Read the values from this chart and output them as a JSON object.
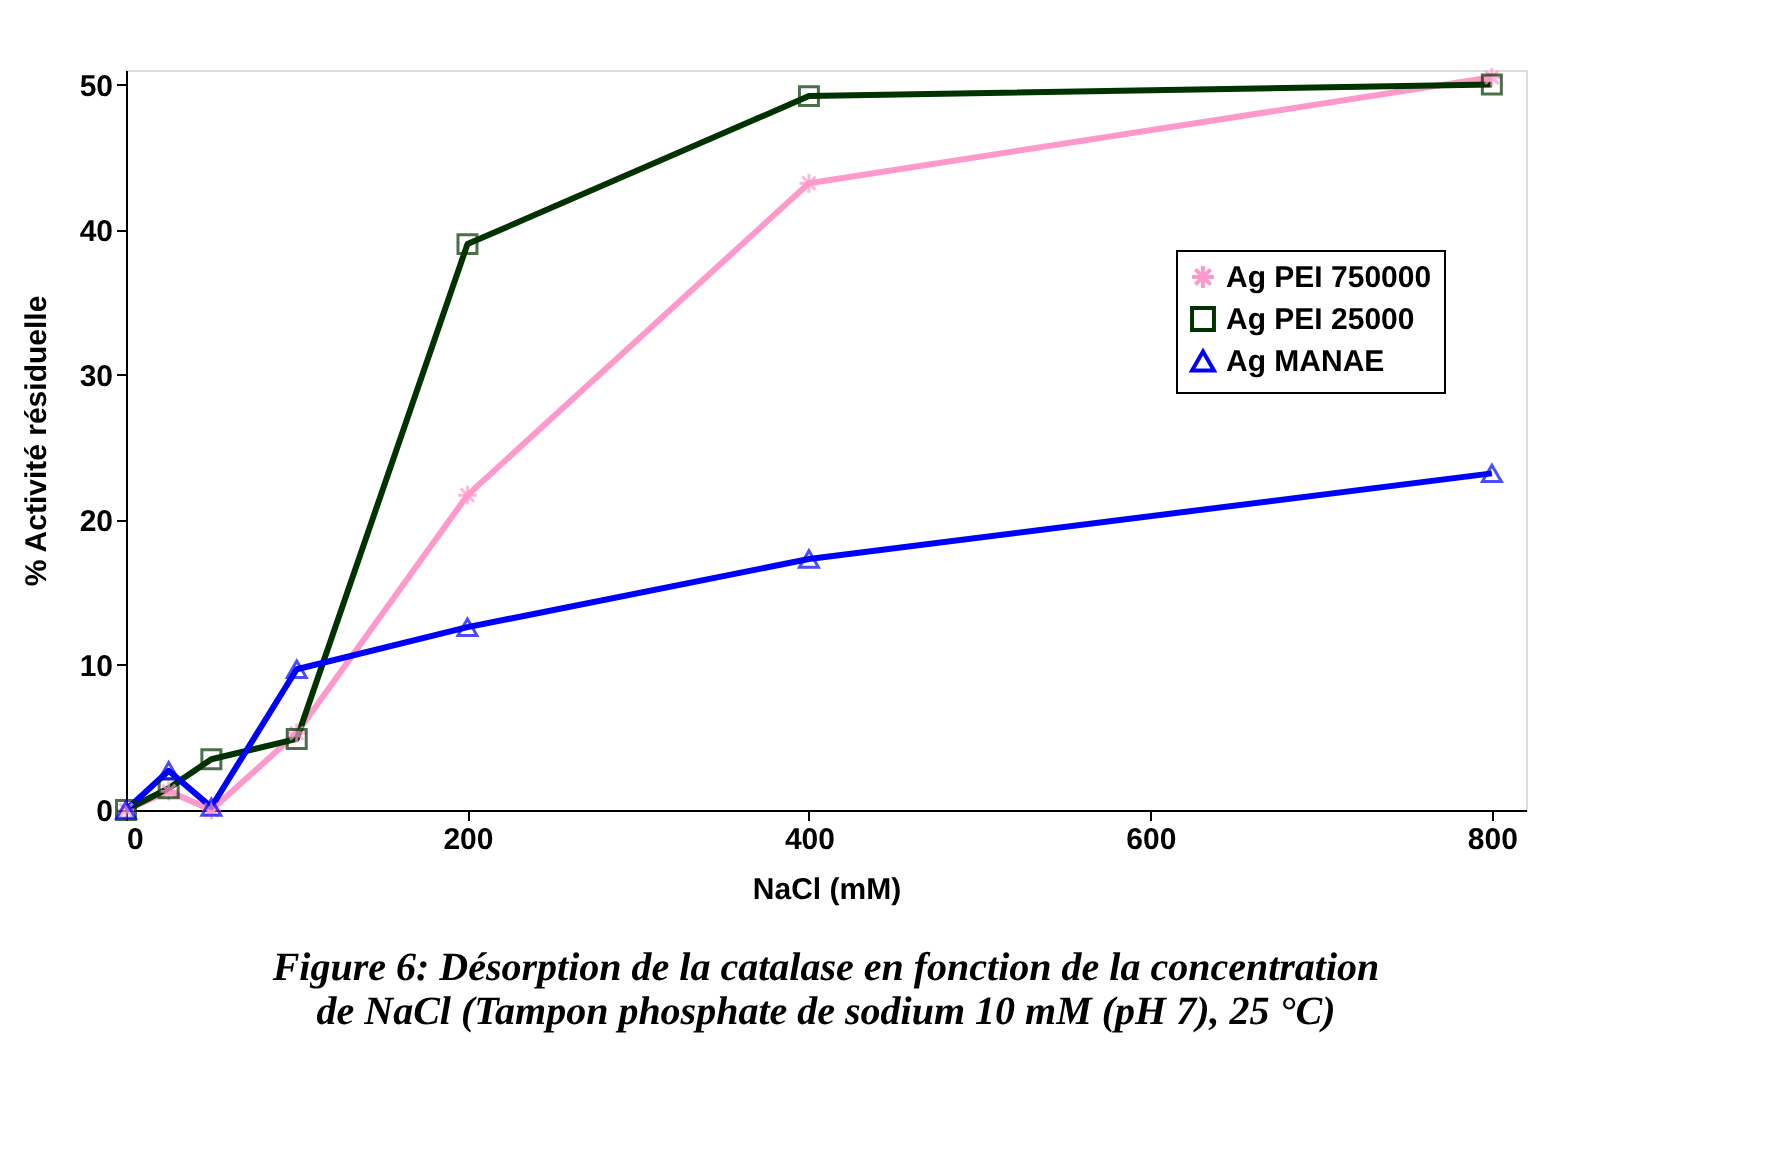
{
  "chart_data": {
    "type": "line",
    "title": "Figure 6: Désorption de la catalase en fonction de la concentration de NaCl (Tampon phosphate de sodium 10 mM (pH 7), 25 °C)",
    "xlabel": "NaCl (mM)",
    "ylabel": "% Activité résiduelle",
    "x": [
      0,
      25,
      50,
      100,
      200,
      400,
      800
    ],
    "series": [
      {
        "name": "Ag PEI 750000",
        "color": "#ff99cc",
        "marker": "cross",
        "values": [
          0,
          1.3,
          0,
          5.3,
          21.7,
          43.2,
          50.5
        ]
      },
      {
        "name": "Ag PEI 25000",
        "color": "#003300",
        "marker": "square",
        "values": [
          0,
          1.5,
          3.5,
          4.9,
          39,
          49.2,
          50
        ]
      },
      {
        "name": "Ag MANAE",
        "color": "#0000ff",
        "marker": "triangle",
        "values": [
          0,
          2.7,
          0.2,
          9.7,
          12.6,
          17.3,
          23.2
        ]
      }
    ],
    "xlim": [
      0,
      820
    ],
    "xticks": [
      0,
      200,
      400,
      600,
      800
    ],
    "ylim": [
      0,
      51
    ],
    "yticks": [
      0,
      10,
      20,
      30,
      40,
      50
    ],
    "grid": false,
    "legend": "right",
    "line_style": "solid"
  }
}
